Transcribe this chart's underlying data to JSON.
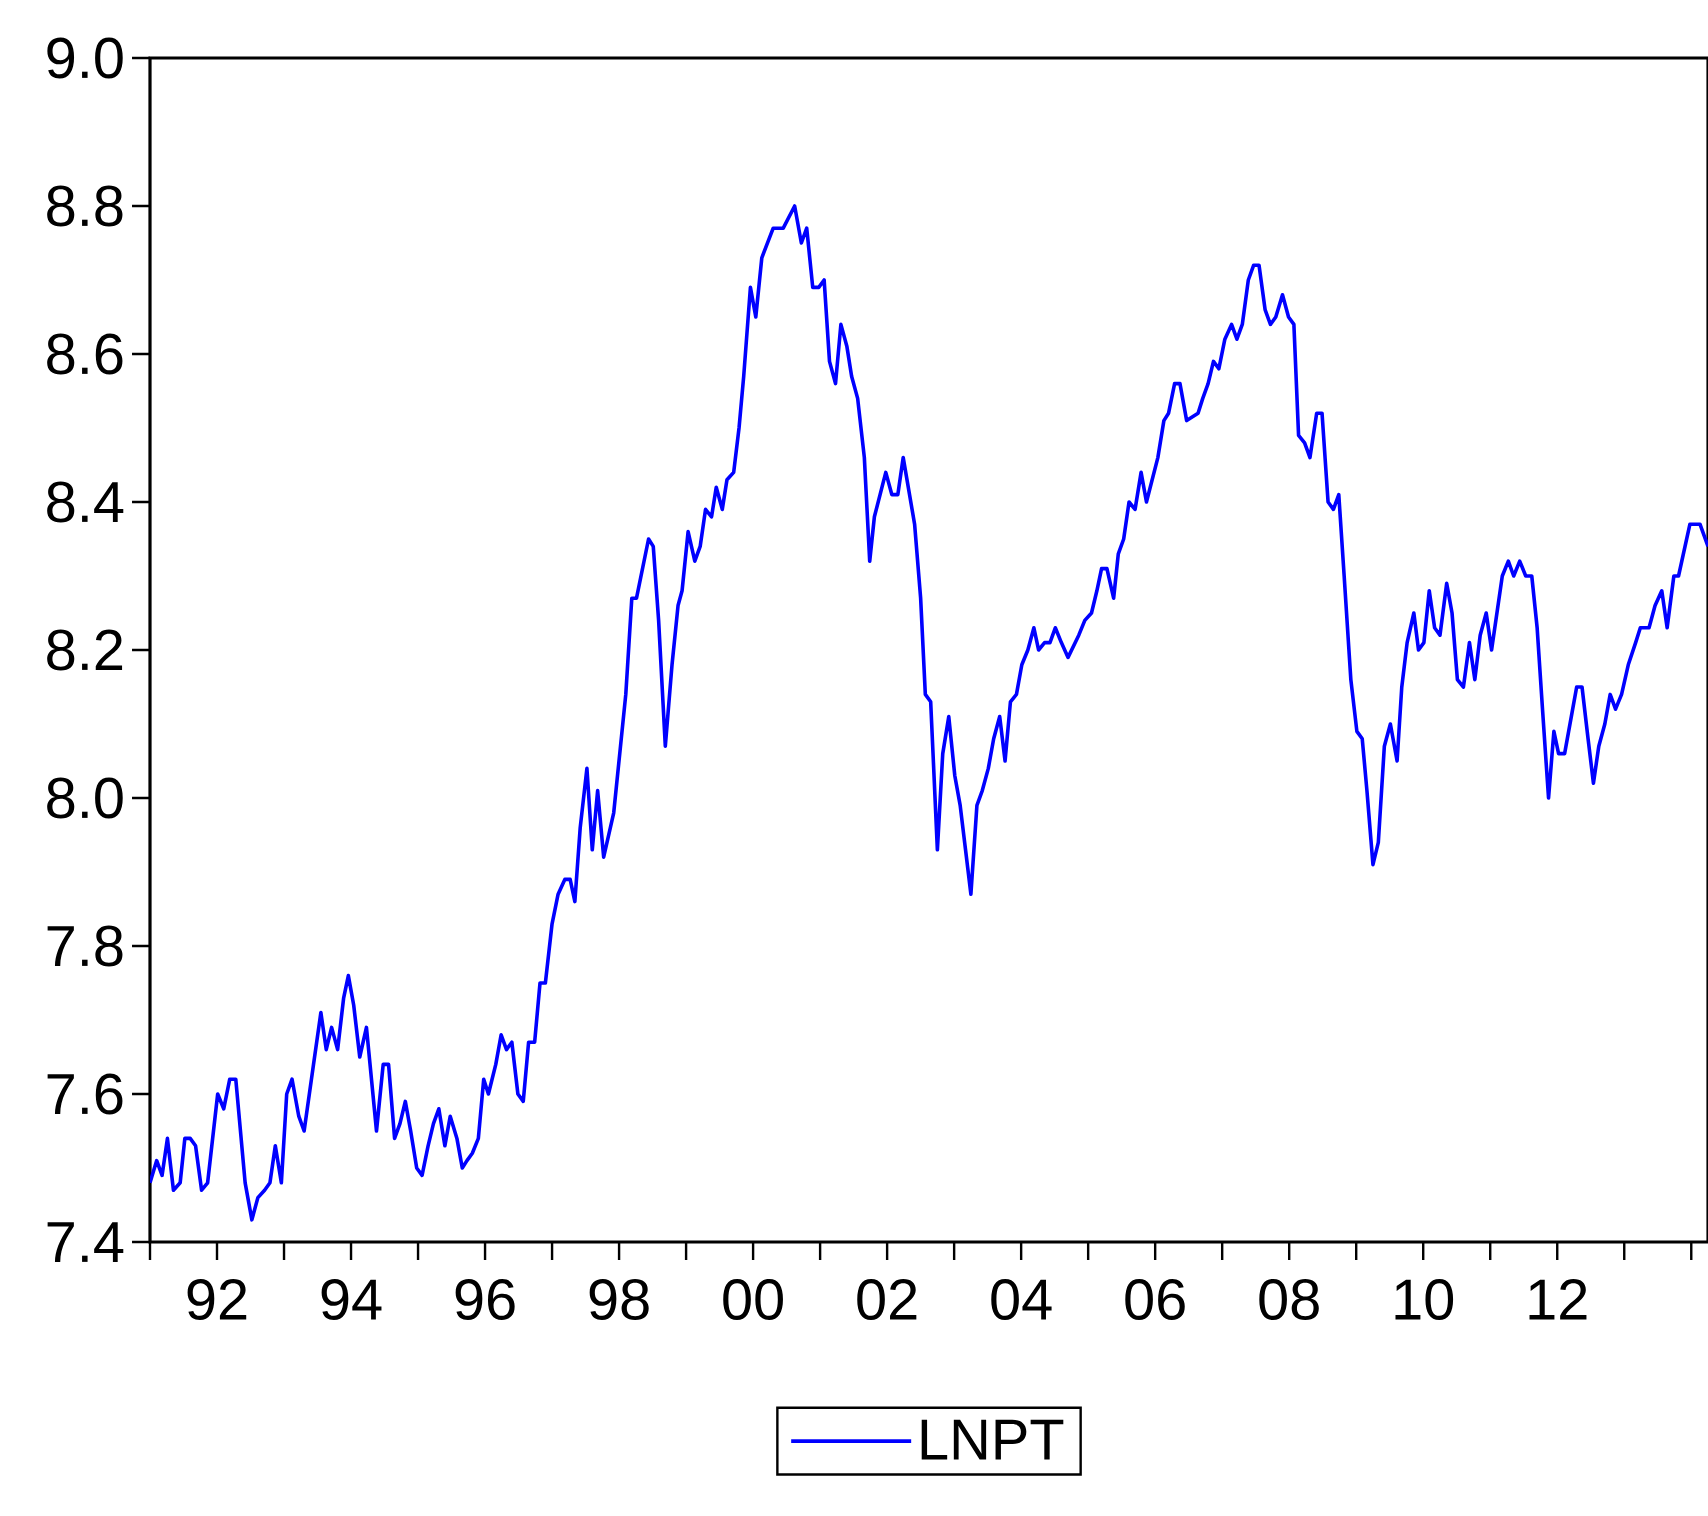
{
  "chart_data": {
    "type": "line",
    "xlim": [
      1991,
      2014.25
    ],
    "xticks": [
      {
        "value": 1991,
        "label": null
      },
      {
        "value": 1992,
        "label": "92"
      },
      {
        "value": 1993,
        "label": null
      },
      {
        "value": 1994,
        "label": "94"
      },
      {
        "value": 1995,
        "label": null
      },
      {
        "value": 1996,
        "label": "96"
      },
      {
        "value": 1997,
        "label": null
      },
      {
        "value": 1998,
        "label": "98"
      },
      {
        "value": 1999,
        "label": null
      },
      {
        "value": 2000,
        "label": "00"
      },
      {
        "value": 2001,
        "label": null
      },
      {
        "value": 2002,
        "label": "02"
      },
      {
        "value": 2003,
        "label": null
      },
      {
        "value": 2004,
        "label": "04"
      },
      {
        "value": 2005,
        "label": null
      },
      {
        "value": 2006,
        "label": "06"
      },
      {
        "value": 2007,
        "label": null
      },
      {
        "value": 2008,
        "label": "08"
      },
      {
        "value": 2009,
        "label": null
      },
      {
        "value": 2010,
        "label": "10"
      },
      {
        "value": 2011,
        "label": null
      },
      {
        "value": 2012,
        "label": "12"
      },
      {
        "value": 2013,
        "label": null
      },
      {
        "value": 2014,
        "label": null
      }
    ],
    "ylim": [
      7.4,
      9.0
    ],
    "yticks": [
      {
        "value": 7.4,
        "label": "7.4"
      },
      {
        "value": 7.6,
        "label": "7.6"
      },
      {
        "value": 7.8,
        "label": "7.8"
      },
      {
        "value": 8.0,
        "label": "8.0"
      },
      {
        "value": 8.2,
        "label": "8.2"
      },
      {
        "value": 8.4,
        "label": "8.4"
      },
      {
        "value": 8.6,
        "label": "8.6"
      },
      {
        "value": 8.8,
        "label": "8.8"
      },
      {
        "value": 9.0,
        "label": "9.0"
      }
    ],
    "legend": "bottom",
    "series": [
      {
        "name": "LNPT",
        "color": "#0000ff",
        "x": [
          1991.0,
          1991.1,
          1991.18,
          1991.26,
          1991.35,
          1991.45,
          1991.52,
          1991.6,
          1991.68,
          1991.77,
          1991.86,
          1992.01,
          1992.1,
          1992.19,
          1992.28,
          1992.42,
          1992.52,
          1992.61,
          1992.71,
          1992.79,
          1992.87,
          1992.96,
          1993.04,
          1993.12,
          1993.22,
          1993.3,
          1993.44,
          1993.55,
          1993.63,
          1993.71,
          1993.8,
          1993.89,
          1993.96,
          1994.04,
          1994.13,
          1994.23,
          1994.38,
          1994.48,
          1994.56,
          1994.65,
          1994.73,
          1994.81,
          1994.89,
          1994.98,
          1995.06,
          1995.15,
          1995.23,
          1995.31,
          1995.4,
          1995.48,
          1995.58,
          1995.66,
          1995.73,
          1995.81,
          1995.9,
          1995.98,
          1996.05,
          1996.16,
          1996.24,
          1996.32,
          1996.4,
          1996.49,
          1996.57,
          1996.65,
          1996.74,
          1996.82,
          1996.9,
          1997.0,
          1997.09,
          1997.19,
          1997.27,
          1997.34,
          1997.42,
          1997.52,
          1997.6,
          1997.68,
          1997.77,
          1997.92,
          1998.01,
          1998.1,
          1998.19,
          1998.26,
          1998.44,
          1998.51,
          1998.59,
          1998.69,
          1998.79,
          1998.88,
          1998.94,
          1999.03,
          1999.13,
          1999.21,
          1999.29,
          1999.38,
          1999.45,
          1999.54,
          1999.61,
          1999.71,
          1999.79,
          1999.86,
          1999.96,
          2000.04,
          2000.13,
          2000.3,
          2000.45,
          2000.62,
          2000.72,
          2000.8,
          2000.89,
          2000.98,
          2001.06,
          2001.14,
          2001.23,
          2001.31,
          2001.4,
          2001.47,
          2001.56,
          2001.66,
          2001.74,
          2001.81,
          2001.98,
          2002.07,
          2002.16,
          2002.24,
          2002.41,
          2002.5,
          2002.57,
          2002.65,
          2002.75,
          2002.83,
          2002.92,
          2003.01,
          2003.09,
          2003.17,
          2003.25,
          2003.34,
          2003.42,
          2003.51,
          2003.59,
          2003.68,
          2003.76,
          2003.84,
          2003.93,
          2004.01,
          2004.1,
          2004.19,
          2004.26,
          2004.35,
          2004.43,
          2004.51,
          2004.6,
          2004.7,
          2004.86,
          2004.95,
          2005.05,
          2005.13,
          2005.2,
          2005.28,
          2005.38,
          2005.45,
          2005.53,
          2005.61,
          2005.7,
          2005.79,
          2005.87,
          2006.04,
          2006.13,
          2006.2,
          2006.29,
          2006.37,
          2006.47,
          2006.64,
          2006.71,
          2006.79,
          2006.87,
          2006.95,
          2007.04,
          2007.14,
          2007.22,
          2007.3,
          2007.39,
          2007.47,
          2007.55,
          2007.64,
          2007.72,
          2007.8,
          2007.9,
          2007.99,
          2008.07,
          2008.14,
          2008.23,
          2008.31,
          2008.41,
          2008.49,
          2008.58,
          2008.66,
          2008.74,
          2008.82,
          2008.92,
          2009.01,
          2009.09,
          2009.16,
          2009.25,
          2009.33,
          2009.42,
          2009.51,
          2009.61,
          2009.68,
          2009.76,
          2009.86,
          2009.93,
          2010.01,
          2010.09,
          2010.17,
          2010.25,
          2010.35,
          2010.43,
          2010.51,
          2010.6,
          2010.69,
          2010.77,
          2010.85,
          2010.94,
          2011.02,
          2011.1,
          2011.18,
          2011.27,
          2011.35,
          2011.44,
          2011.53,
          2011.62,
          2011.7,
          2011.78,
          2011.87,
          2011.95,
          2012.02,
          2012.11,
          2012.21,
          2012.29,
          2012.37,
          2012.46,
          2012.54,
          2012.62,
          2012.71,
          2012.79,
          2012.87,
          2012.96,
          2013.06,
          2013.17,
          2013.24,
          2013.37,
          2013.46,
          2013.56,
          2013.64,
          2013.74,
          2013.81,
          2013.98,
          2014.13,
          2014.25
        ],
        "values": [
          7.48,
          7.51,
          7.49,
          7.54,
          7.47,
          7.48,
          7.54,
          7.54,
          7.53,
          7.47,
          7.48,
          7.6,
          7.58,
          7.62,
          7.62,
          7.48,
          7.43,
          7.46,
          7.47,
          7.48,
          7.53,
          7.48,
          7.6,
          7.62,
          7.57,
          7.55,
          7.64,
          7.71,
          7.66,
          7.69,
          7.66,
          7.73,
          7.76,
          7.72,
          7.65,
          7.69,
          7.55,
          7.64,
          7.64,
          7.54,
          7.56,
          7.59,
          7.55,
          7.5,
          7.49,
          7.53,
          7.56,
          7.58,
          7.53,
          7.57,
          7.54,
          7.5,
          7.51,
          7.52,
          7.54,
          7.62,
          7.6,
          7.64,
          7.68,
          7.66,
          7.67,
          7.6,
          7.59,
          7.67,
          7.67,
          7.75,
          7.75,
          7.83,
          7.87,
          7.89,
          7.89,
          7.86,
          7.96,
          8.04,
          7.93,
          8.01,
          7.92,
          7.98,
          8.06,
          8.14,
          8.27,
          8.27,
          8.35,
          8.34,
          8.24,
          8.07,
          8.18,
          8.26,
          8.28,
          8.36,
          8.32,
          8.34,
          8.39,
          8.38,
          8.42,
          8.39,
          8.43,
          8.44,
          8.5,
          8.57,
          8.69,
          8.65,
          8.73,
          8.77,
          8.77,
          8.8,
          8.75,
          8.77,
          8.69,
          8.69,
          8.7,
          8.59,
          8.56,
          8.64,
          8.61,
          8.57,
          8.54,
          8.46,
          8.32,
          8.38,
          8.44,
          8.41,
          8.41,
          8.46,
          8.37,
          8.27,
          8.14,
          8.13,
          7.93,
          8.06,
          8.11,
          8.03,
          7.99,
          7.93,
          7.87,
          7.99,
          8.01,
          8.04,
          8.08,
          8.11,
          8.05,
          8.13,
          8.14,
          8.18,
          8.2,
          8.23,
          8.2,
          8.21,
          8.21,
          8.23,
          8.21,
          8.19,
          8.22,
          8.24,
          8.25,
          8.28,
          8.31,
          8.31,
          8.27,
          8.33,
          8.35,
          8.4,
          8.39,
          8.44,
          8.4,
          8.46,
          8.51,
          8.52,
          8.56,
          8.56,
          8.51,
          8.52,
          8.54,
          8.56,
          8.59,
          8.58,
          8.62,
          8.64,
          8.62,
          8.64,
          8.7,
          8.72,
          8.72,
          8.66,
          8.64,
          8.65,
          8.68,
          8.65,
          8.64,
          8.49,
          8.48,
          8.46,
          8.52,
          8.52,
          8.4,
          8.39,
          8.41,
          8.3,
          8.16,
          8.09,
          8.08,
          8.01,
          7.91,
          7.94,
          8.07,
          8.1,
          8.05,
          8.15,
          8.21,
          8.25,
          8.2,
          8.21,
          8.28,
          8.23,
          8.22,
          8.29,
          8.25,
          8.16,
          8.15,
          8.21,
          8.16,
          8.22,
          8.25,
          8.2,
          8.25,
          8.3,
          8.32,
          8.3,
          8.32,
          8.3,
          8.3,
          8.23,
          8.12,
          8.0,
          8.09,
          8.06,
          8.06,
          8.11,
          8.15,
          8.15,
          8.08,
          8.02,
          8.07,
          8.1,
          8.14,
          8.12,
          8.14,
          8.18,
          8.21,
          8.23,
          8.23,
          8.26,
          8.28,
          8.23,
          8.3,
          8.3,
          8.37,
          8.37,
          8.34
        ]
      }
    ]
  }
}
